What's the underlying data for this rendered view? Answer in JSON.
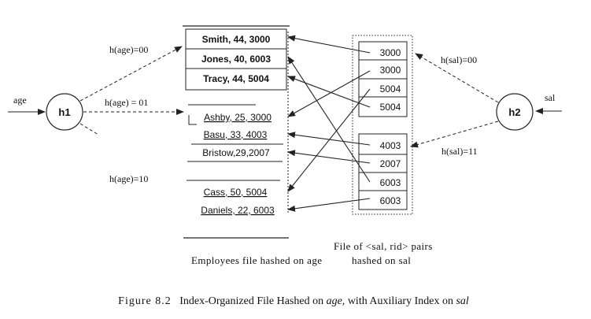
{
  "left_input_label": "age",
  "right_input_label": "sal",
  "hash_nodes": {
    "left": "h1",
    "right": "h2"
  },
  "age_hash_labels": [
    "h(age)=00",
    "h(age) = 01",
    "h(age)=10"
  ],
  "sal_hash_labels": [
    "h(sal)=00",
    "h(sal)=11"
  ],
  "employee_buckets": [
    [
      "Smith, 44, 3000",
      "Jones, 40, 6003",
      "Tracy, 44, 5004"
    ],
    [
      "Ashby, 25, 3000",
      "Basu, 33, 4003",
      "Bristow,29,2007"
    ],
    [
      "Cass, 50, 5004",
      "Daniels, 22, 6003"
    ]
  ],
  "sal_buckets": [
    [
      "3000",
      "3000",
      "5004",
      "5004"
    ],
    [
      "4003",
      "2007",
      "6003",
      "6003"
    ]
  ],
  "captions": {
    "employees_file": "Employees file hashed on age",
    "pairs_file_line1": "File of <sal, rid> pairs",
    "pairs_file_line2": "hashed on sal"
  },
  "figure_caption": {
    "prefix": "Figure 8.2",
    "text_a": "Index-Organized File Hashed on",
    "italic_a": "age,",
    "text_b": "with Auxiliary Index on",
    "italic_b": "sal"
  }
}
